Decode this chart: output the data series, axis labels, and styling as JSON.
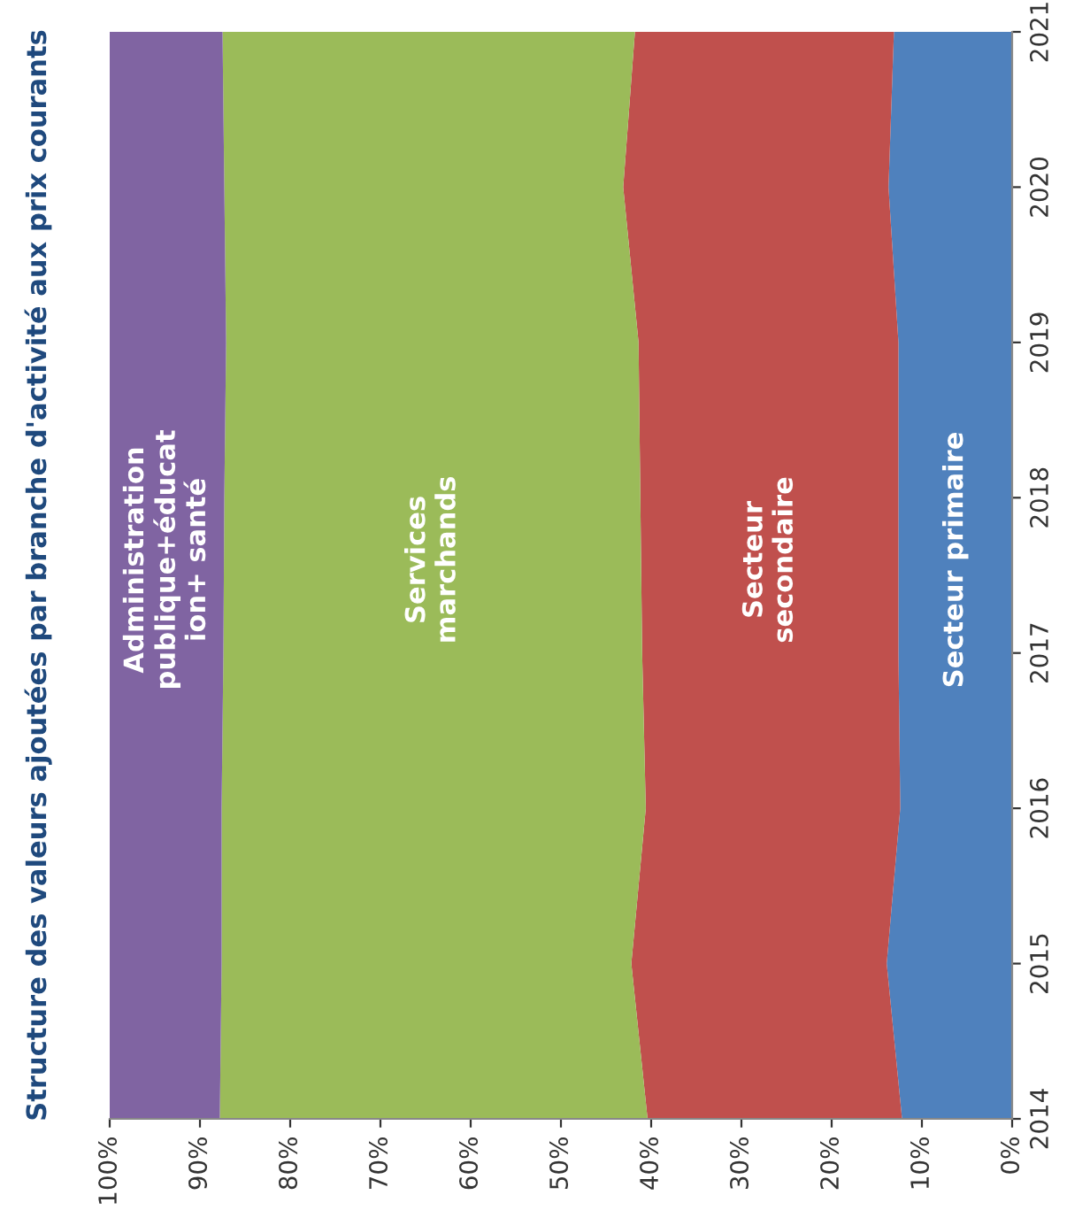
{
  "chart_data": {
    "type": "area",
    "stacked": true,
    "orientation": "horizontal",
    "title": "Structure des valeurs ajoutées par branche d'activité aux prix courants",
    "x": [
      2014,
      2015,
      2016,
      2017,
      2018,
      2019,
      2020,
      2021
    ],
    "series": [
      {
        "name": "Secteur primaire",
        "color": "#4f81bd",
        "values": [
          12.2,
          13.9,
          12.4,
          12.6,
          12.6,
          12.6,
          13.7,
          13.1
        ]
      },
      {
        "name": "Secteur\nsecondaire",
        "color": "#c0504d",
        "values": [
          28.2,
          28.3,
          28.2,
          28.4,
          28.6,
          28.8,
          29.4,
          28.7
        ]
      },
      {
        "name": "Services\nmarchands",
        "color": "#9bbb59",
        "values": [
          47.4,
          45.4,
          47.0,
          46.4,
          46.1,
          45.7,
          44.2,
          45.7
        ]
      },
      {
        "name": "Administration\npublique+éducat\nion+ santé",
        "color": "#8064a2",
        "values": [
          12.2,
          12.4,
          12.4,
          12.6,
          12.7,
          12.9,
          12.7,
          12.5
        ]
      }
    ],
    "xlim": [
      100,
      0
    ],
    "xticks": [
      {
        "value": 100,
        "label": "100%"
      },
      {
        "value": 90,
        "label": "90%"
      },
      {
        "value": 80,
        "label": "80%"
      },
      {
        "value": 70,
        "label": "70%"
      },
      {
        "value": 60,
        "label": "60%"
      },
      {
        "value": 50,
        "label": "50%"
      },
      {
        "value": 40,
        "label": "40%"
      },
      {
        "value": 30,
        "label": "30%"
      },
      {
        "value": 20,
        "label": "20%"
      },
      {
        "value": 10,
        "label": "10%"
      },
      {
        "value": 0,
        "label": "0%"
      }
    ],
    "ylim": [
      2014,
      2021
    ],
    "yticks": [
      2014,
      2015,
      2016,
      2017,
      2018,
      2019,
      2020,
      2021
    ],
    "grid": false,
    "legend": false
  }
}
